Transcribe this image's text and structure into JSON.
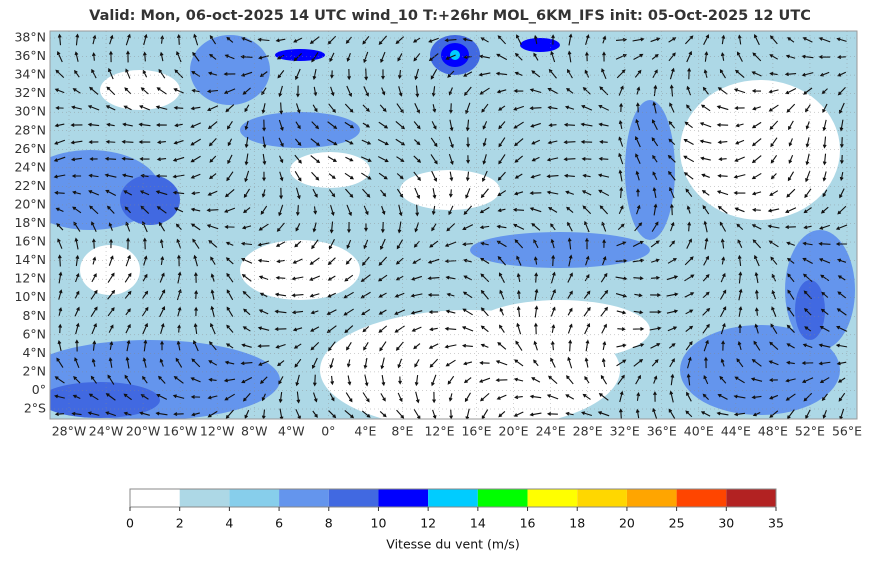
{
  "header": {
    "title": "Valid: Mon, 06-oct-2025   14 UTC   wind_10   T:+26hr   MOL_6KM_IFS   init: 05-Oct-2025    12 UTC"
  },
  "map": {
    "lat_labels": [
      "38°N",
      "36°N",
      "34°N",
      "32°N",
      "30°N",
      "28°N",
      "26°N",
      "24°N",
      "22°N",
      "20°N",
      "18°N",
      "16°N",
      "14°N",
      "12°N",
      "10°N",
      "8°N",
      "6°N",
      "4°N",
      "2°N",
      "0°",
      "2°S"
    ],
    "lon_labels": [
      "28°W",
      "24°W",
      "20°W",
      "16°W",
      "12°W",
      "8°W",
      "4°W",
      "0°",
      "4°E",
      "8°E",
      "12°E",
      "16°E",
      "20°E",
      "24°E",
      "28°E",
      "32°E",
      "36°E",
      "40°E",
      "44°E",
      "48°E",
      "52°E",
      "56°E"
    ]
  },
  "colorbar": {
    "ticks": [
      0,
      2,
      4,
      6,
      8,
      10,
      12,
      14,
      16,
      18,
      20,
      25,
      30,
      35
    ],
    "colors": [
      "#ffffff",
      "#add8e6",
      "#87ceeb",
      "#6495ed",
      "#4169e1",
      "#0000ff",
      "#00ccff",
      "#00ff00",
      "#ffff00",
      "#ffd700",
      "#ffa500",
      "#ff4500",
      "#b22222"
    ],
    "label": "Vitesse du vent (m/s)"
  }
}
